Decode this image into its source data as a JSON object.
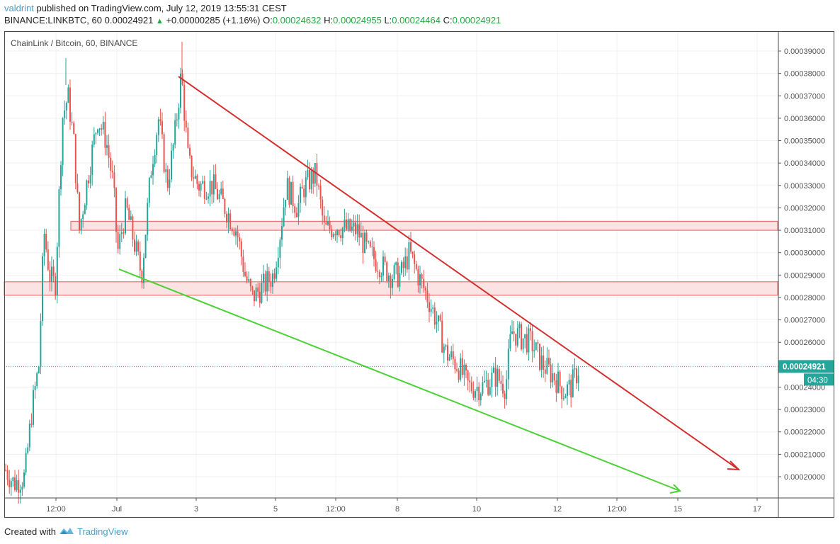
{
  "header": {
    "author": "valdrint",
    "published_text": "published on TradingView.com, July 12, 2019 13:55:31 CEST",
    "symbol_line": "BINANCE:LINKBTC, 60",
    "last_price": "0.00024921",
    "change_icon": "triangle-up-icon",
    "change": "+0.00000285 (+1.16%)",
    "ohlc": {
      "o_label": "O:",
      "o": "0.00024632",
      "h_label": "H:",
      "h": "0.00024955",
      "l_label": "L:",
      "l": "0.00024464",
      "c_label": "C:",
      "c": "0.00024921"
    }
  },
  "chart_title": "ChainLink / Bitcoin, 60, BINANCE",
  "price_label": {
    "value": "0.00024921",
    "countdown": "04:30",
    "color": "#26a69a"
  },
  "footer": {
    "created_with": "Created with",
    "brand": "TradingView",
    "logo_icon": "tradingview-logo-icon"
  },
  "colors": {
    "up": "#26a69a",
    "down": "#ef5350",
    "resistance_line": "#d32f2f",
    "support_line": "#4cd137",
    "zone_fill": "#fbe3e3",
    "zone_border": "#e57373",
    "grid": "#edf0f3"
  },
  "chart_data": {
    "type": "candlestick",
    "title": "ChainLink / Bitcoin, 60, BINANCE",
    "symbol": "BINANCE:LINKBTC",
    "interval": "60",
    "xlabel": "",
    "ylabel": "",
    "x_ticks": [
      "12:00",
      "Jul",
      "3",
      "5",
      "12:00",
      "8",
      "10",
      "12",
      "12:00",
      "15",
      "17"
    ],
    "y_ticks": [
      "0.00039000",
      "0.00038000",
      "0.00037000",
      "0.00036000",
      "0.00035000",
      "0.00034000",
      "0.00033000",
      "0.00032000",
      "0.00031000",
      "0.00030000",
      "0.00029000",
      "0.00028000",
      "0.00027000",
      "0.00026000",
      "0.00024000",
      "0.00023000",
      "0.00022000",
      "0.00021000",
      "0.00020000"
    ],
    "ylim": [
      0.000191,
      0.000396
    ],
    "grid": true,
    "last_price": 0.00024921,
    "approx_path": [
      {
        "t": "Jun 30 02:00",
        "close": 0.0002
      },
      {
        "t": "Jun 30 08:00",
        "close": 0.00023
      },
      {
        "t": "Jun 30 12:00",
        "close": 0.00031
      },
      {
        "t": "Jun 30 16:00",
        "close": 0.00037
      },
      {
        "t": "Jun 30 20:00",
        "close": 0.00035
      },
      {
        "t": "Jul 1 00:00",
        "close": 0.00032
      },
      {
        "t": "Jul 1 12:00",
        "close": 0.0003
      },
      {
        "t": "Jul 2 06:00",
        "close": 0.00036
      },
      {
        "t": "Jul 2 14:00",
        "close": 0.00038
      },
      {
        "t": "Jul 3 12:00",
        "close": 0.00033
      },
      {
        "t": "Jul 4 12:00",
        "close": 0.00029
      },
      {
        "t": "Jul 5 06:00",
        "close": 0.00032
      },
      {
        "t": "Jul 6 00:00",
        "close": 0.00033
      },
      {
        "t": "Jul 6 12:00",
        "close": 0.00031
      },
      {
        "t": "Jul 7 12:00",
        "close": 0.00029
      },
      {
        "t": "Jul 8 06:00",
        "close": 0.0003
      },
      {
        "t": "Jul 9 00:00",
        "close": 0.00026
      },
      {
        "t": "Jul 10 00:00",
        "close": 0.00024
      },
      {
        "t": "Jul 10 18:00",
        "close": 0.000235
      },
      {
        "t": "Jul 11 02:00",
        "close": 0.000265
      },
      {
        "t": "Jul 12 00:00",
        "close": 0.00024
      },
      {
        "t": "Jul 12 13:00",
        "close": 0.00024921
      }
    ],
    "annotations": [
      {
        "type": "trendline",
        "name": "descending resistance",
        "color": "#d32f2f",
        "from": {
          "t": "Jul 2 14:00",
          "price": 0.00038
        },
        "to": {
          "t": "Jul 16 12:00",
          "price": 0.000203
        },
        "arrow": true
      },
      {
        "type": "trendline",
        "name": "descending support",
        "color": "#4cd137",
        "from": {
          "t": "Jul 1 00:00",
          "price": 0.000292
        },
        "to": {
          "t": "Jul 15 00:00",
          "price": 0.000194
        },
        "arrow": true
      },
      {
        "type": "zone",
        "name": "resistance zone",
        "price_top": 0.000314,
        "price_bottom": 0.00031
      },
      {
        "type": "zone",
        "name": "support zone",
        "price_top": 0.000287,
        "price_bottom": 0.000281
      }
    ]
  }
}
